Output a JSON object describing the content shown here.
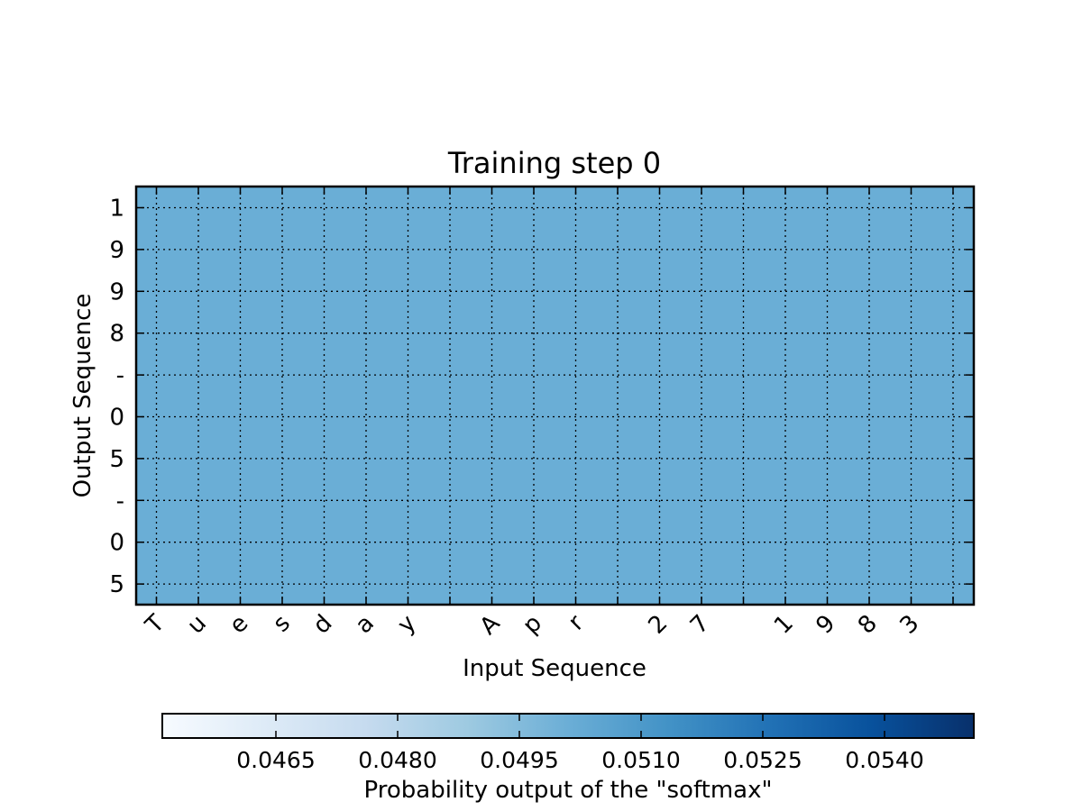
{
  "chart_data": {
    "type": "heatmap",
    "title": "Training step 0",
    "xlabel": "Input Sequence",
    "ylabel": "Output Sequence",
    "x_tick_labels": [
      "T",
      "u",
      "e",
      "s",
      "d",
      "a",
      "y",
      "",
      "A",
      "p",
      "r",
      "",
      "2",
      "7",
      "",
      "1",
      "9",
      "8",
      "3",
      ""
    ],
    "y_tick_labels": [
      "1",
      "9",
      "9",
      "8",
      "-",
      "0",
      "5",
      "-",
      "0",
      "5"
    ],
    "value_uniform_approx": 0.05,
    "grid": true,
    "grid_style": "dotted",
    "colormap": "Blues",
    "colorbar": {
      "label": "Probability output of the \"softmax\"",
      "orientation": "horizontal",
      "placement": "bottom",
      "range": [
        0.0451,
        0.0551
      ],
      "ticks": [
        "0.0465",
        "0.0480",
        "0.0495",
        "0.0510",
        "0.0525",
        "0.0540"
      ],
      "tick_values": [
        0.0465,
        0.048,
        0.0495,
        0.051,
        0.0525,
        0.054
      ]
    },
    "colors": {
      "cell_fill": "#6aaed6",
      "cmap_stops": [
        "#f7fbff",
        "#deebf7",
        "#c6dbef",
        "#9ecae1",
        "#6baed6",
        "#4292c6",
        "#2171b5",
        "#08519c",
        "#08306b"
      ]
    }
  }
}
